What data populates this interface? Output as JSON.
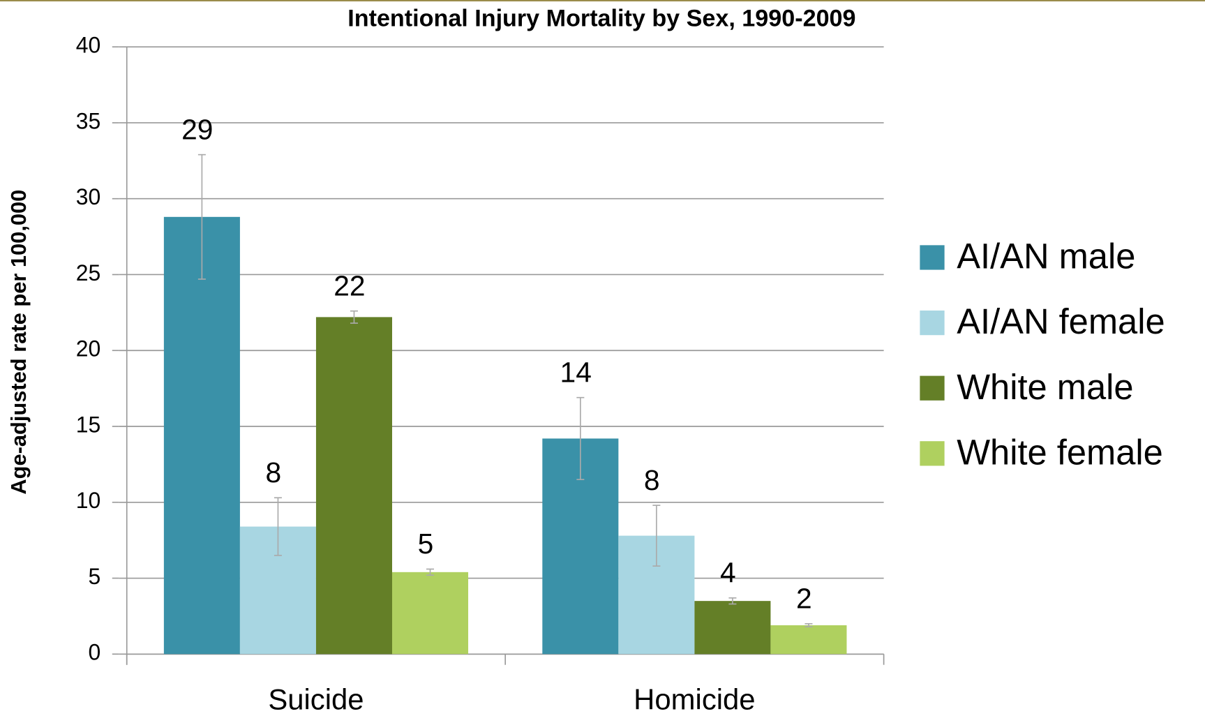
{
  "chart_data": {
    "type": "bar",
    "title": "Intentional Injury Mortality by Sex, 1990-2009",
    "y_label": "Age-adjusted rate per 100,000",
    "categories": [
      "Suicide",
      "Homicide"
    ],
    "series": [
      {
        "name": "AI/AN male",
        "color": "#3a91a8",
        "values": [
          28.8,
          14.2
        ],
        "value_labels": [
          "29",
          "14"
        ],
        "errors": [
          4.1,
          2.7
        ]
      },
      {
        "name": "AI/AN female",
        "color": "#a8d6e2",
        "values": [
          8.4,
          7.8
        ],
        "value_labels": [
          "8",
          "8"
        ],
        "errors": [
          1.9,
          2.0
        ]
      },
      {
        "name": "White male",
        "color": "#647f27",
        "values": [
          22.2,
          3.5
        ],
        "value_labels": [
          "22",
          "4"
        ],
        "errors": [
          0.4,
          0.2
        ]
      },
      {
        "name": "White female",
        "color": "#afd05f",
        "values": [
          5.4,
          1.9
        ],
        "value_labels": [
          "5",
          "2"
        ],
        "errors": [
          0.2,
          0.1
        ]
      }
    ],
    "ylim": [
      0,
      40
    ],
    "yticks": [
      0,
      5,
      10,
      15,
      20,
      25,
      30,
      35,
      40
    ],
    "grid": true,
    "legend": "right"
  }
}
